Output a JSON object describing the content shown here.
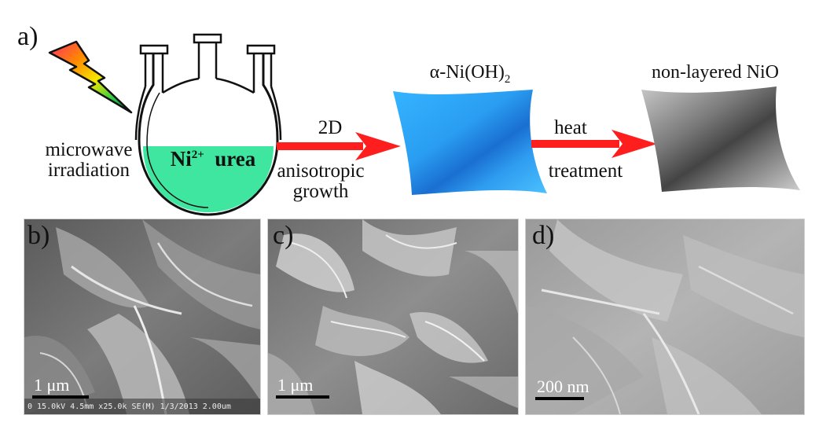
{
  "panel_a": {
    "letter": "a)",
    "microwave_label": [
      "microwave",
      "irradiation"
    ],
    "flask_contents": {
      "ion": "Ni",
      "ion_charge": "2+",
      "reagent": "urea"
    },
    "arrow1_top": "2D",
    "arrow1_bottom": [
      "anisotropic",
      "growth"
    ],
    "product1": {
      "prefix": "α-Ni(OH)",
      "subscript": "2"
    },
    "arrow2_top": "heat",
    "arrow2_bottom": "treatment",
    "product2": "non-layered NiO",
    "colors": {
      "arrow": "#ff1e1e",
      "solution": "#3ee6a0",
      "sheet1": "#2aa8ff",
      "sheet2": "#6e6e6e"
    }
  },
  "panel_b": {
    "letter": "b)",
    "scalebar": "1 μm",
    "footer": "0 15.0kV 4.5mm x25.0k SE(M) 1/3/2013   2.00um"
  },
  "panel_c": {
    "letter": "c)",
    "scalebar": "1 μm"
  },
  "panel_d": {
    "letter": "d)",
    "scalebar": "200 nm"
  }
}
